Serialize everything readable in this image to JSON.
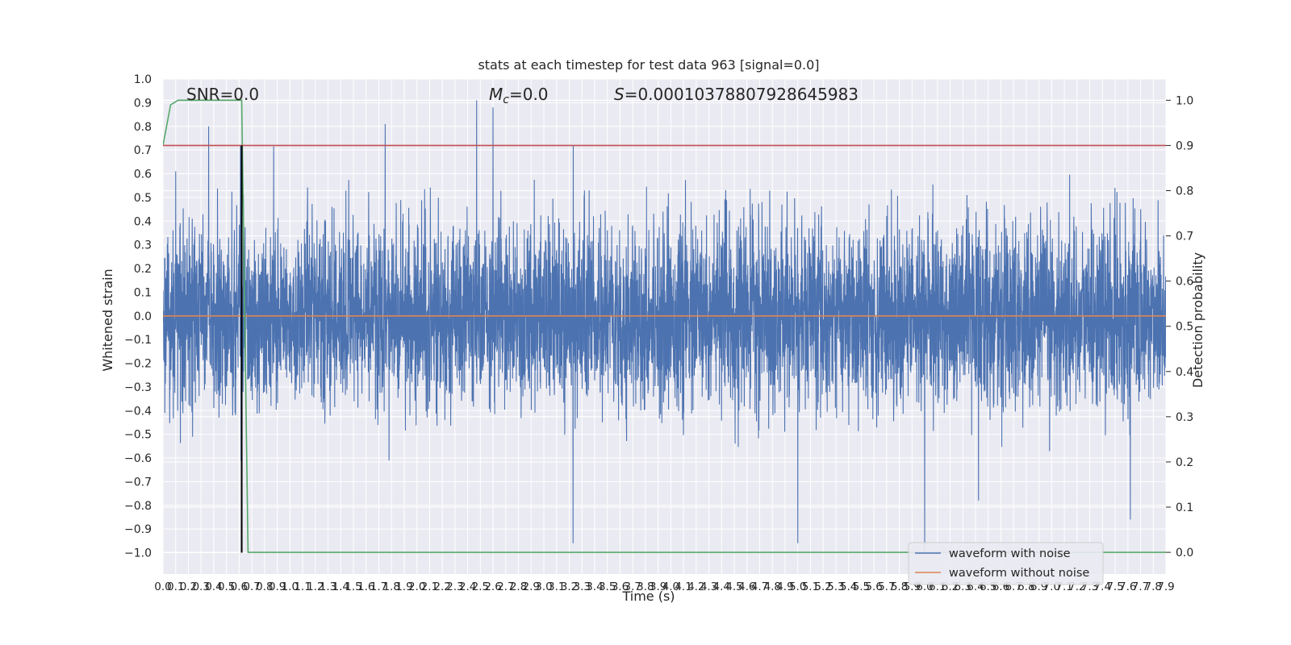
{
  "chart_data": {
    "type": "line",
    "title": "stats at each timestep for test data 963 [signal=0.0]",
    "xlabel": "Time (s)",
    "ylabel": "Whitened strain",
    "y2label": "Detection probability",
    "xlim": [
      0.0,
      7.9
    ],
    "ylim": [
      -1.09,
      1.0
    ],
    "y2lim": [
      -0.048,
      1.047
    ],
    "grid": true,
    "legend_placement": "lower-right",
    "annotations": {
      "snr": "SNR=0.0",
      "mc_symbol": "M",
      "mc_sub": "c",
      "mc_value": "=0.0",
      "s_symbol": "S",
      "s_value": "=0.00010378807928645983"
    },
    "y_ticks": [
      1.0,
      0.9,
      0.8,
      0.7,
      0.6,
      0.5,
      0.4,
      0.3,
      0.2,
      0.1,
      0.0,
      -0.1,
      -0.2,
      -0.3,
      -0.4,
      -0.5,
      -0.6,
      -0.7,
      -0.8,
      -0.9,
      -1.0
    ],
    "y_tick_labels": [
      "1.0",
      "0.9",
      "0.8",
      "0.7",
      "0.6",
      "0.5",
      "0.4",
      "0.3",
      "0.2",
      "0.1",
      "0.0",
      "−0.1",
      "−0.2",
      "−0.3",
      "−0.4",
      "−0.5",
      "−0.6",
      "−0.7",
      "−0.8",
      "−0.9",
      "−1.0"
    ],
    "y2_ticks": [
      1.0,
      0.9,
      0.8,
      0.7,
      0.6,
      0.5,
      0.4,
      0.3,
      0.2,
      0.1,
      0.0
    ],
    "y2_tick_labels": [
      "1.0",
      "0.9",
      "0.8",
      "0.7",
      "0.6",
      "0.5",
      "0.4",
      "0.3",
      "0.2",
      "0.1",
      "0.0"
    ],
    "x_ticks": [
      0.0,
      0.1,
      0.2,
      0.3,
      0.4,
      0.5,
      0.6,
      0.7,
      0.8,
      0.9,
      1.0,
      1.1,
      1.2,
      1.3,
      1.4,
      1.5,
      1.6,
      1.7,
      1.8,
      1.9,
      2.0,
      2.1,
      2.2,
      2.3,
      2.4,
      2.5,
      2.6,
      2.7,
      2.8,
      2.9,
      3.0,
      3.1,
      3.2,
      3.3,
      3.4,
      3.5,
      3.6,
      3.7,
      3.8,
      3.9,
      4.0,
      4.1,
      4.2,
      4.3,
      4.4,
      4.5,
      4.6,
      4.7,
      4.8,
      4.9,
      5.0,
      5.1,
      5.2,
      5.3,
      5.4,
      5.5,
      5.6,
      5.7,
      5.8,
      5.9,
      6.0,
      6.1,
      6.2,
      6.3,
      6.4,
      6.5,
      6.6,
      6.7,
      6.8,
      6.9,
      7.0,
      7.1,
      7.2,
      7.3,
      7.4,
      7.5,
      7.6,
      7.7,
      7.8,
      7.9
    ],
    "x_tick_labels": [
      "0.0",
      "0.1",
      "0.2",
      "0.3",
      "0.4",
      "0.5",
      "0.6",
      "0.7",
      "0.8",
      "0.9",
      "1.0",
      "1.1",
      "1.2",
      "1.3",
      "1.4",
      "1.5",
      "1.6",
      "1.7",
      "1.8",
      "1.9",
      "2.0",
      "2.1",
      "2.2",
      "2.3",
      "2.4",
      "2.5",
      "2.6",
      "2.7",
      "2.8",
      "2.9",
      "3.0",
      "3.1",
      "3.2",
      "3.3",
      "3.4",
      "3.5",
      "3.6",
      "3.7",
      "3.8",
      "3.9",
      "4.0",
      "4.1",
      "4.2",
      "4.3",
      "4.4",
      "4.5",
      "4.6",
      "4.7",
      "4.8",
      "4.9",
      "5.0",
      "5.1",
      "5.2",
      "5.3",
      "5.4",
      "5.5",
      "5.6",
      "5.7",
      "5.8",
      "5.9",
      "6.0",
      "6.1",
      "6.2",
      "6.3",
      "6.4",
      "6.5",
      "6.6",
      "6.7",
      "6.8",
      "6.9",
      "7.0",
      "7.1",
      "7.2",
      "7.3",
      "7.4",
      "7.5",
      "7.6",
      "7.7",
      "7.8",
      "7.9"
    ],
    "series": [
      {
        "name": "waveform with noise",
        "axis": "left",
        "color": "#4c72b0",
        "description_of_values": "dense noise, |strain| mostly within ~0.5, peaks near +0.9 and -0.96",
        "peaks": [
          {
            "x": 0.36,
            "y": 0.8
          },
          {
            "x": 0.61,
            "y": 0.72
          },
          {
            "x": 1.75,
            "y": 0.81
          },
          {
            "x": 2.47,
            "y": 0.91
          },
          {
            "x": 2.6,
            "y": 0.88
          },
          {
            "x": 3.23,
            "y": -0.96
          },
          {
            "x": 5.0,
            "y": -0.96
          },
          {
            "x": 6.0,
            "y": -1.0
          },
          {
            "x": 7.62,
            "y": -0.86
          }
        ]
      },
      {
        "name": "waveform without noise",
        "axis": "left",
        "color": "#dd8452",
        "x": [
          0.0,
          7.9
        ],
        "y": [
          0.0,
          0.0
        ]
      },
      {
        "axis": "right",
        "color": "#55a868",
        "x": [
          0.0,
          0.06,
          0.12,
          0.2,
          0.3,
          0.4,
          0.5,
          0.6,
          0.62,
          0.67,
          0.7,
          1.0,
          2.0,
          3.0,
          4.0,
          5.0,
          6.0,
          7.0,
          7.9
        ],
        "y": [
          0.9,
          0.99,
          1.0,
          1.0,
          1.0,
          1.0,
          1.0,
          1.0,
          1.0,
          0.0,
          0.0,
          0.0,
          0.0,
          0.0,
          0.0,
          0.0,
          0.0,
          0.0,
          0.0
        ]
      },
      {
        "axis": "right",
        "color": "#c44e52",
        "x": [
          0.0,
          7.9
        ],
        "y": [
          0.9,
          0.9
        ]
      },
      {
        "axis": "left",
        "color": "#000000",
        "x": [
          0.62,
          0.62
        ],
        "y": [
          -1.0,
          0.72
        ]
      }
    ]
  },
  "colors": {
    "plot_background": "#eaeaf2",
    "grid": "#ffffff",
    "text": "#262626"
  }
}
